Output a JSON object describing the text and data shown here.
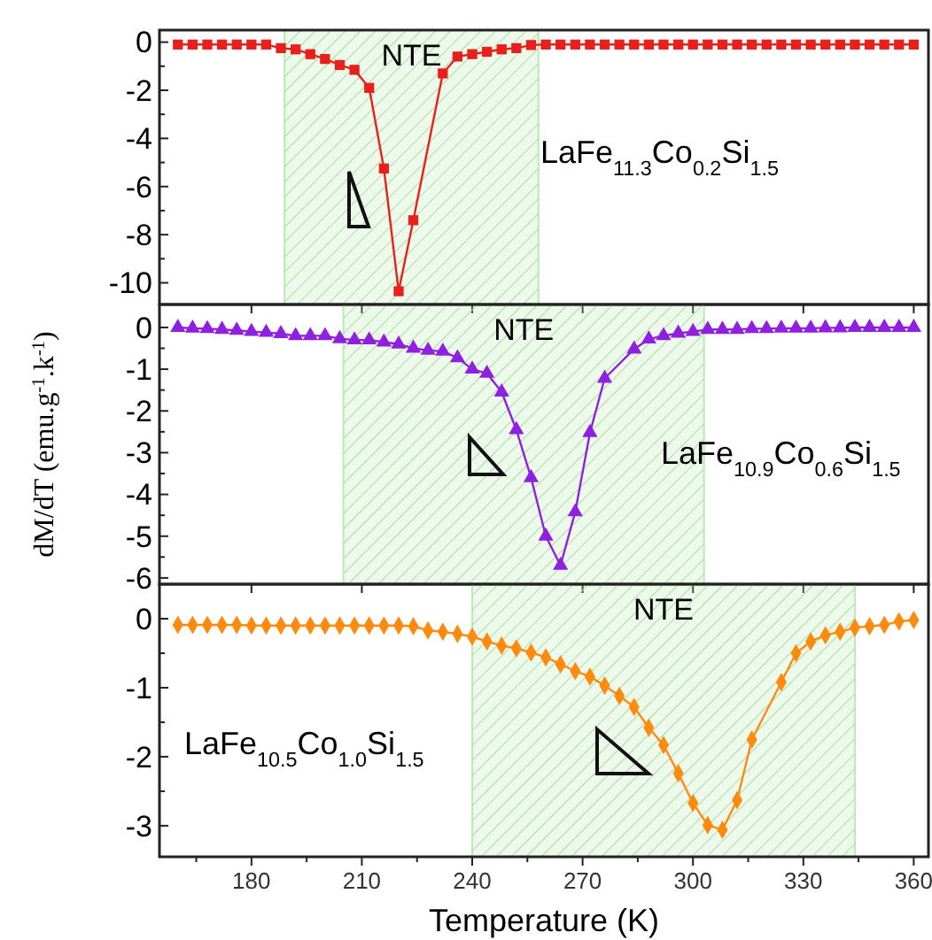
{
  "chart_data": [
    {
      "type": "line",
      "marker": "square",
      "tick_labels": "y",
      "xlim": [
        155,
        364
      ],
      "ylim": [
        -10.9,
        0.5
      ],
      "xticks": [
        180,
        210,
        240,
        270,
        300,
        330,
        360
      ],
      "yticks": [
        0,
        {
          "value": -1,
          "label": null
        },
        -2,
        {
          "value": -3,
          "label": null
        },
        -4,
        {
          "value": -5,
          "label": null
        },
        -6,
        {
          "value": -7,
          "label": null
        },
        -8,
        {
          "value": -9,
          "label": null
        },
        -10
      ],
      "bands": [
        {
          "axis": "x",
          "from": 189,
          "to": 258,
          "label": "NTE",
          "color": "#b8ecb0"
        }
      ],
      "annotations": [
        "LaFe$_{11.3}$Co$_{0.2}$Si$_{1.5}$"
      ],
      "series": [
        {
          "color": "#e8201c",
          "x": [
            160,
            164,
            168,
            172,
            176,
            180,
            184,
            188,
            192,
            196,
            200,
            204,
            208,
            212,
            216,
            220,
            224,
            232,
            236,
            240,
            244,
            248,
            252,
            256,
            260,
            264,
            268,
            272,
            276,
            280,
            284,
            288,
            292,
            296,
            300,
            304,
            308,
            312,
            316,
            320,
            324,
            328,
            332,
            336,
            340,
            344,
            348,
            352,
            356,
            360
          ],
          "values": [
            -0.1,
            -0.1,
            -0.1,
            -0.1,
            -0.1,
            -0.1,
            -0.1,
            -0.25,
            -0.3,
            -0.5,
            -0.7,
            -0.95,
            -1.15,
            -1.9,
            -5.25,
            -10.35,
            -7.4,
            -1.3,
            -0.6,
            -0.5,
            -0.4,
            -0.3,
            -0.25,
            -0.12,
            -0.1,
            -0.1,
            -0.1,
            -0.1,
            -0.1,
            -0.1,
            -0.1,
            -0.1,
            -0.1,
            -0.1,
            -0.1,
            -0.1,
            -0.1,
            -0.1,
            -0.1,
            -0.1,
            -0.1,
            -0.1,
            -0.1,
            -0.1,
            -0.1,
            -0.1,
            -0.1,
            -0.1,
            -0.1,
            -0.1
          ]
        }
      ]
    },
    {
      "type": "line",
      "marker": "triangle",
      "tick_labels": "y",
      "xlim": [
        155,
        364
      ],
      "ylim": [
        -6.15,
        0.55
      ],
      "ylabel": "dM/dT (emu.g$^{-1}$.k$^{-1}$)",
      "xticks": [
        180,
        210,
        240,
        270,
        300,
        330,
        360
      ],
      "yticks": [
        0,
        {
          "value": -0.5,
          "label": null
        },
        -1,
        {
          "value": -1.5,
          "label": null
        },
        -2,
        {
          "value": -2.5,
          "label": null
        },
        -3,
        {
          "value": -3.5,
          "label": null
        },
        -4,
        {
          "value": -4.5,
          "label": null
        },
        -5,
        {
          "value": -5.5,
          "label": null
        },
        -6
      ],
      "bands": [
        {
          "axis": "x",
          "from": 205,
          "to": 303,
          "label": "NTE",
          "color": "#b8ecb0"
        }
      ],
      "annotations": [
        "LaFe$_{10.9}$Co$_{0.6}$Si$_{1.5}$"
      ],
      "series": [
        {
          "color": "#9020e0",
          "x": [
            160,
            164,
            168,
            172,
            176,
            180,
            184,
            188,
            192,
            196,
            200,
            204,
            208,
            212,
            216,
            220,
            224,
            228,
            232,
            236,
            240,
            244,
            248,
            252,
            256,
            260,
            264,
            268,
            272,
            276,
            284,
            288,
            292,
            296,
            300,
            304,
            308,
            312,
            316,
            320,
            324,
            328,
            332,
            336,
            340,
            344,
            348,
            352,
            356,
            360
          ],
          "values": [
            0,
            -0.02,
            -0.03,
            -0.05,
            -0.07,
            -0.1,
            -0.12,
            -0.15,
            -0.2,
            -0.2,
            -0.2,
            -0.27,
            -0.3,
            -0.3,
            -0.35,
            -0.4,
            -0.5,
            -0.55,
            -0.57,
            -0.73,
            -1.0,
            -1.1,
            -1.55,
            -2.45,
            -3.6,
            -5.0,
            -5.7,
            -4.42,
            -2.52,
            -1.22,
            -0.52,
            -0.28,
            -0.2,
            -0.14,
            -0.1,
            -0.05,
            -0.05,
            -0.05,
            -0.03,
            -0.03,
            -0.02,
            -0.02,
            -0.02,
            -0.01,
            -0.01,
            0,
            0,
            0,
            0,
            0
          ]
        }
      ]
    },
    {
      "type": "line",
      "marker": "diamond",
      "xlim": [
        155,
        364
      ],
      "ylim": [
        -3.45,
        0.5
      ],
      "xlabel": "Temperature (K)",
      "xticks": [
        {
          "value": 165,
          "label": null
        },
        180,
        {
          "value": 195,
          "label": null
        },
        210,
        {
          "value": 225,
          "label": null
        },
        240,
        {
          "value": 255,
          "label": null
        },
        270,
        {
          "value": 285,
          "label": null
        },
        300,
        {
          "value": 315,
          "label": null
        },
        330,
        {
          "value": 345,
          "label": null
        },
        360
      ],
      "yticks": [
        0,
        {
          "value": -0.5,
          "label": null
        },
        -1,
        {
          "value": -1.5,
          "label": null
        },
        -2,
        {
          "value": -2.5,
          "label": null
        },
        -3
      ],
      "bands": [
        {
          "axis": "x",
          "from": 240,
          "to": 344,
          "label": "NTE",
          "color": "#b8ecb0"
        }
      ],
      "annotations": [
        "LaFe$_{10.5}$Co$_{1.0}$Si$_{1.5}$"
      ],
      "series": [
        {
          "color": "#ff8a10",
          "x": [
            160,
            164,
            168,
            172,
            176,
            180,
            184,
            188,
            192,
            196,
            200,
            204,
            208,
            212,
            216,
            220,
            224,
            228,
            232,
            236,
            240,
            244,
            248,
            252,
            256,
            260,
            264,
            268,
            272,
            276,
            280,
            284,
            288,
            292,
            296,
            300,
            304,
            308,
            312,
            316,
            324,
            328,
            332,
            336,
            340,
            344,
            348,
            352,
            356,
            360
          ],
          "values": [
            -0.09,
            -0.09,
            -0.09,
            -0.09,
            -0.09,
            -0.1,
            -0.1,
            -0.1,
            -0.1,
            -0.1,
            -0.1,
            -0.1,
            -0.1,
            -0.1,
            -0.1,
            -0.1,
            -0.11,
            -0.17,
            -0.19,
            -0.22,
            -0.26,
            -0.33,
            -0.39,
            -0.43,
            -0.49,
            -0.56,
            -0.66,
            -0.76,
            -0.84,
            -0.97,
            -1.12,
            -1.28,
            -1.58,
            -1.83,
            -2.24,
            -2.67,
            -2.99,
            -3.06,
            -2.63,
            -1.75,
            -0.92,
            -0.5,
            -0.33,
            -0.24,
            -0.19,
            -0.13,
            -0.11,
            -0.09,
            -0.04,
            -0.02
          ]
        }
      ]
    }
  ]
}
